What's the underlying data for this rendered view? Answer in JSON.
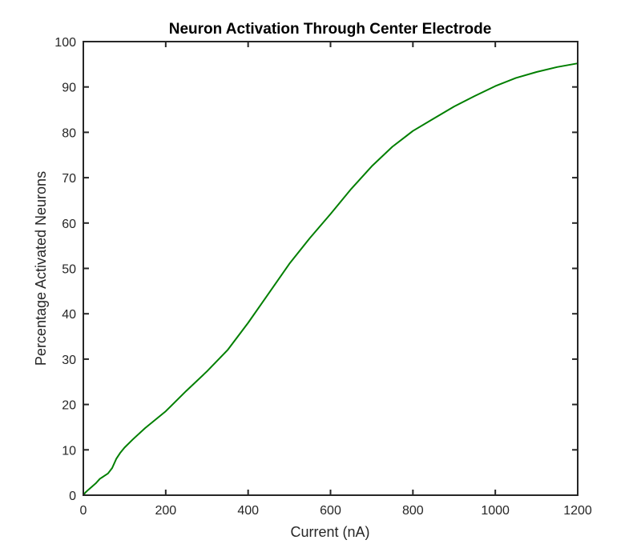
{
  "chart_data": {
    "type": "line",
    "title": "Neuron Activation Through Center Electrode",
    "xlabel": "Current (nA)",
    "ylabel": "Percentage Activated Neurons",
    "xlim": [
      0,
      1200
    ],
    "ylim": [
      0,
      100
    ],
    "xticks": [
      0,
      200,
      400,
      600,
      800,
      1000,
      1200
    ],
    "yticks": [
      0,
      10,
      20,
      30,
      40,
      50,
      60,
      70,
      80,
      90,
      100
    ],
    "grid": false,
    "legend": "none",
    "series": [
      {
        "color": "#007f00",
        "x": [
          0,
          5,
          10,
          20,
          30,
          40,
          50,
          60,
          70,
          80,
          90,
          100,
          120,
          150,
          200,
          250,
          300,
          350,
          400,
          450,
          500,
          550,
          600,
          650,
          700,
          750,
          800,
          850,
          900,
          950,
          1000,
          1050,
          1100,
          1150,
          1200
        ],
        "y": [
          0,
          0.6,
          1.0,
          1.8,
          2.6,
          3.6,
          4.2,
          4.8,
          6.0,
          8.0,
          9.4,
          10.5,
          12.3,
          14.8,
          18.5,
          23.0,
          27.3,
          32.0,
          38.0,
          44.5,
          51.0,
          56.7,
          62.0,
          67.5,
          72.5,
          76.8,
          80.3,
          83.0,
          85.7,
          88.0,
          90.2,
          92.0,
          93.3,
          94.4,
          95.2
        ]
      }
    ]
  }
}
